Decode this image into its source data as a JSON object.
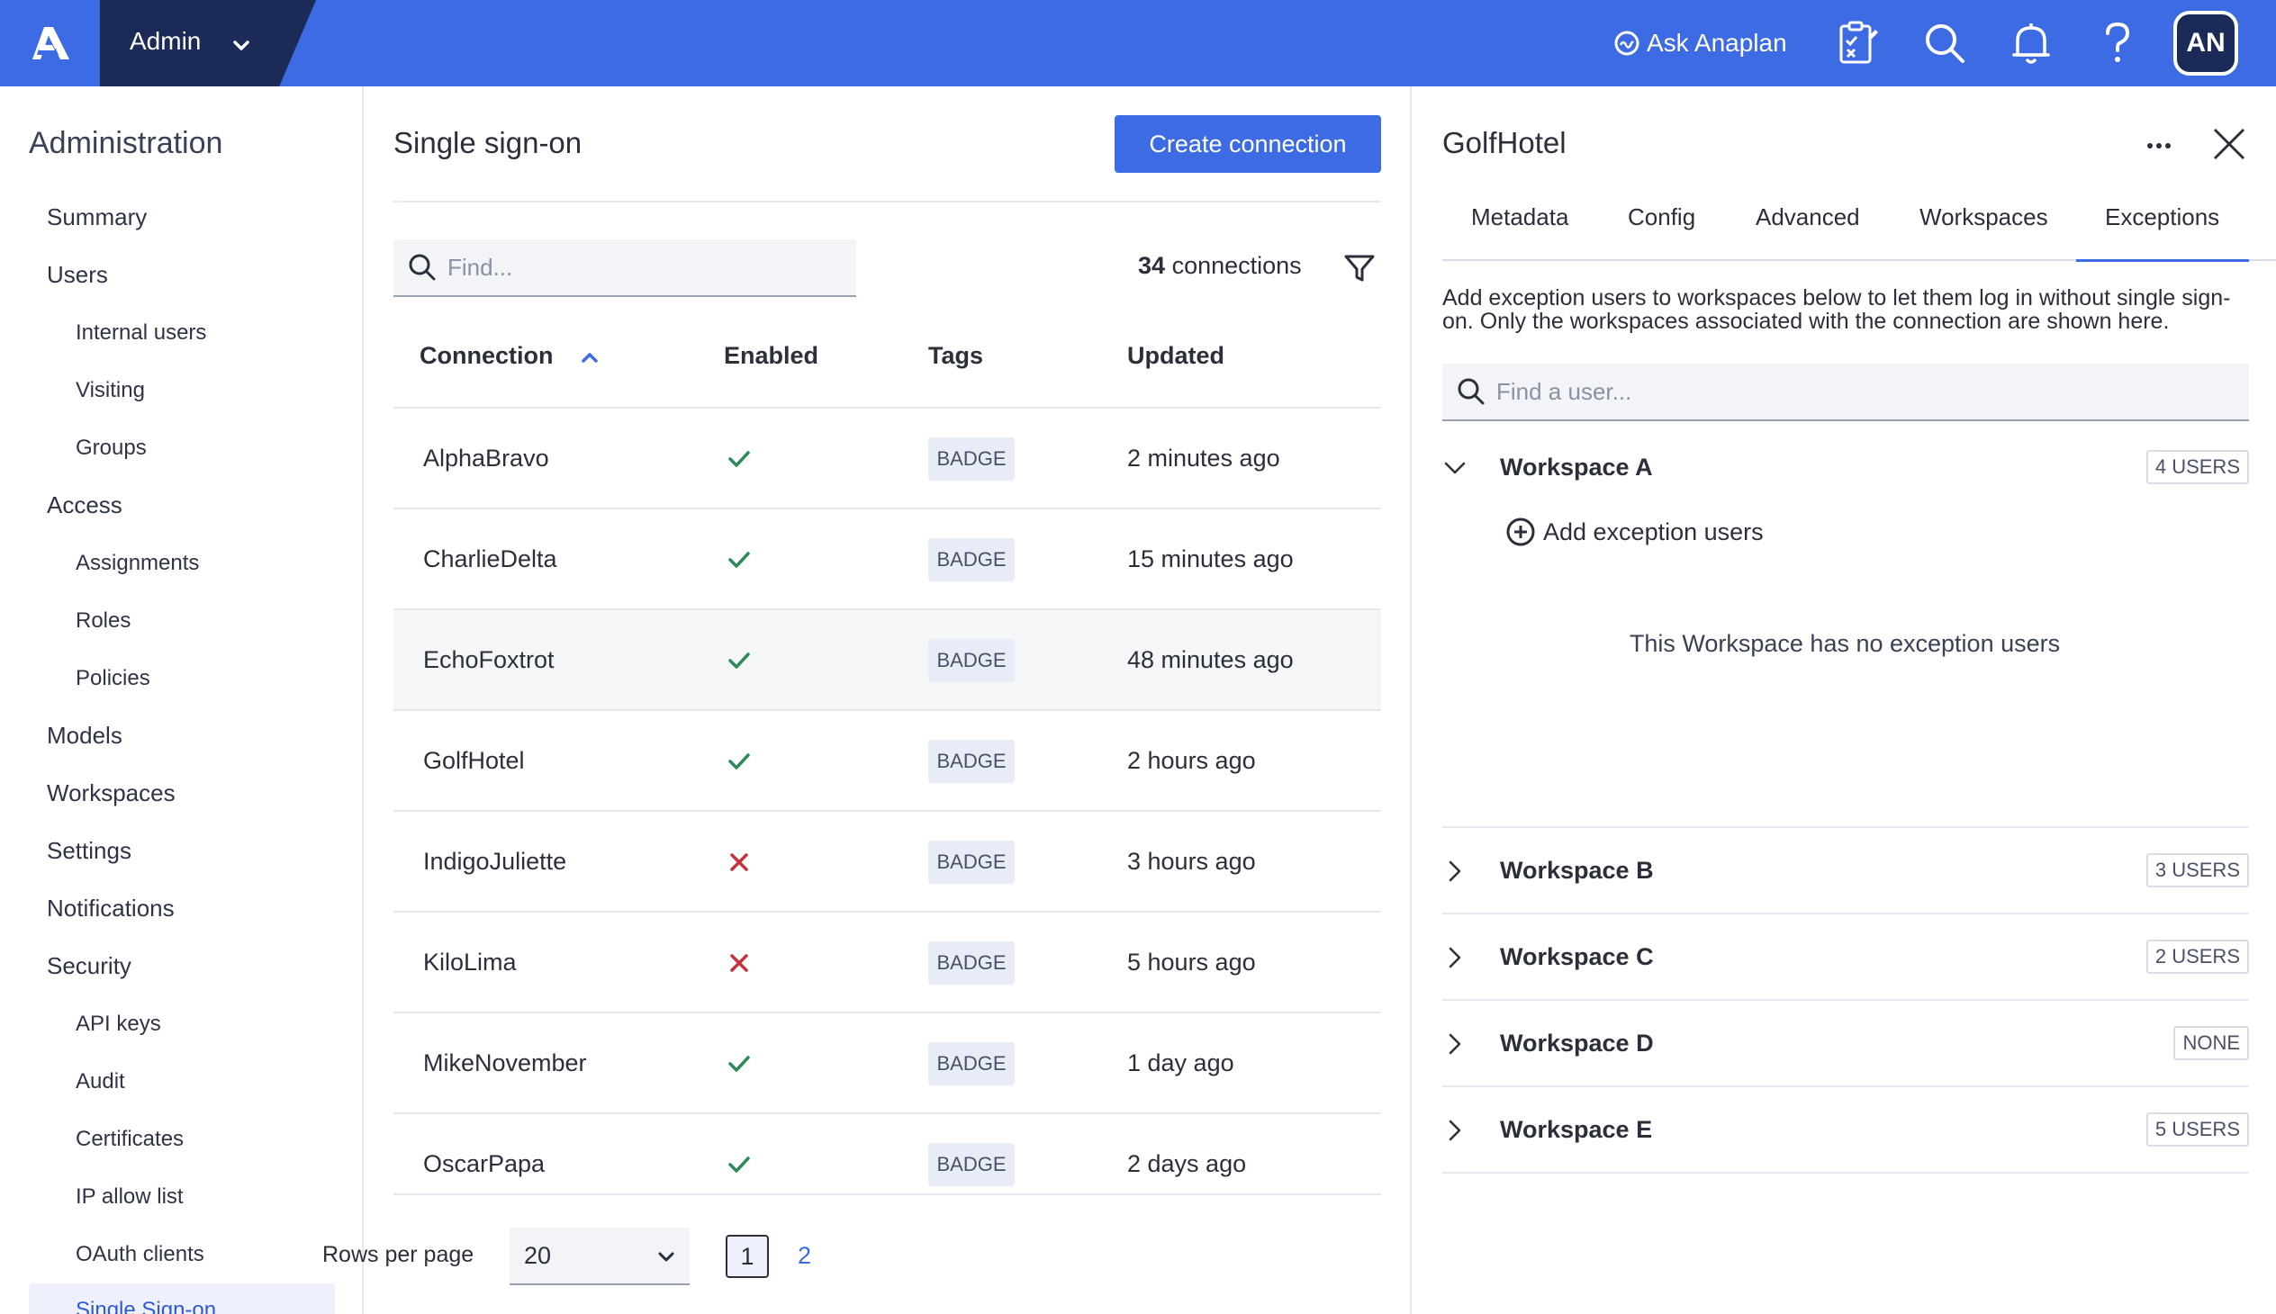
{
  "topbar": {
    "app_switcher_label": "Admin",
    "ask_label": "Ask Anaplan",
    "avatar_initials": "AN",
    "colors": {
      "bar": "#3d6be4",
      "admin_box": "#1c2a57"
    },
    "icons": [
      "anaplan-logo-icon",
      "chevron-down-icon",
      "ask-anaplan-icon",
      "tasks-icon",
      "search-icon",
      "bell-icon",
      "help-icon"
    ]
  },
  "sidebar": {
    "title": "Administration",
    "items": [
      {
        "label": "Summary",
        "level": 1
      },
      {
        "label": "Users",
        "level": 1
      },
      {
        "label": "Internal users",
        "level": 2
      },
      {
        "label": "Visiting",
        "level": 2
      },
      {
        "label": "Groups",
        "level": 2
      },
      {
        "label": "Access",
        "level": 1
      },
      {
        "label": "Assignments",
        "level": 2
      },
      {
        "label": "Roles",
        "level": 2
      },
      {
        "label": "Policies",
        "level": 2
      },
      {
        "label": "Models",
        "level": 1
      },
      {
        "label": "Workspaces",
        "level": 1
      },
      {
        "label": "Settings",
        "level": 1
      },
      {
        "label": "Notifications",
        "level": 1
      },
      {
        "label": "Security",
        "level": 1
      },
      {
        "label": "API keys",
        "level": 2
      },
      {
        "label": "Audit",
        "level": 2
      },
      {
        "label": "Certificates",
        "level": 2
      },
      {
        "label": "IP allow list",
        "level": 2
      },
      {
        "label": "OAuth clients",
        "level": 2
      },
      {
        "label": "Single Sign-on",
        "level": 2,
        "active": true
      }
    ]
  },
  "main": {
    "title": "Single sign-on",
    "create_button": "Create connection",
    "search_placeholder": "Find...",
    "count_number": "34",
    "count_label": "connections",
    "columns": [
      "Connection",
      "Enabled",
      "Tags",
      "Updated"
    ],
    "rows": [
      {
        "name": "AlphaBravo",
        "enabled": true,
        "tag": "BADGE",
        "updated": "2 minutes ago"
      },
      {
        "name": "CharlieDelta",
        "enabled": true,
        "tag": "BADGE",
        "updated": "15 minutes ago"
      },
      {
        "name": "EchoFoxtrot",
        "enabled": true,
        "tag": "BADGE",
        "updated": "48 minutes ago",
        "highlighted": true
      },
      {
        "name": "GolfHotel",
        "enabled": true,
        "tag": "BADGE",
        "updated": "2 hours ago"
      },
      {
        "name": "IndigoJuliette",
        "enabled": false,
        "tag": "BADGE",
        "updated": "3 hours ago"
      },
      {
        "name": "KiloLima",
        "enabled": false,
        "tag": "BADGE",
        "updated": "5 hours ago"
      },
      {
        "name": "MikeNovember",
        "enabled": true,
        "tag": "BADGE",
        "updated": "1 day ago"
      },
      {
        "name": "OscarPapa",
        "enabled": true,
        "tag": "BADGE",
        "updated": "2 days ago"
      }
    ],
    "pagination": {
      "rows_per_page_label": "Rows per page",
      "rows_per_page_value": "20",
      "current_page": "1",
      "other_page": "2"
    },
    "colors": {
      "check": "#2e8b57",
      "cross": "#c8323c"
    }
  },
  "panel": {
    "title": "GolfHotel",
    "tabs": [
      "Metadata",
      "Config",
      "Advanced",
      "Workspaces",
      "Exceptions"
    ],
    "active_tab": "Exceptions",
    "description": "Add exception users to workspaces below to let them log in without single sign-on.  Only the workspaces associated with the connection are shown here.",
    "search_placeholder": "Find a user...",
    "add_exception_label": "Add exception users",
    "empty_message": "This Workspace has no exception users",
    "workspaces": [
      {
        "name": "Workspace A",
        "count": "4 USERS",
        "expanded": true
      },
      {
        "name": "Workspace B",
        "count": "3 USERS",
        "expanded": false
      },
      {
        "name": "Workspace C",
        "count": "2 USERS",
        "expanded": false
      },
      {
        "name": "Workspace D",
        "count": "NONE",
        "expanded": false
      },
      {
        "name": "Workspace E",
        "count": "5 USERS",
        "expanded": false
      }
    ]
  }
}
